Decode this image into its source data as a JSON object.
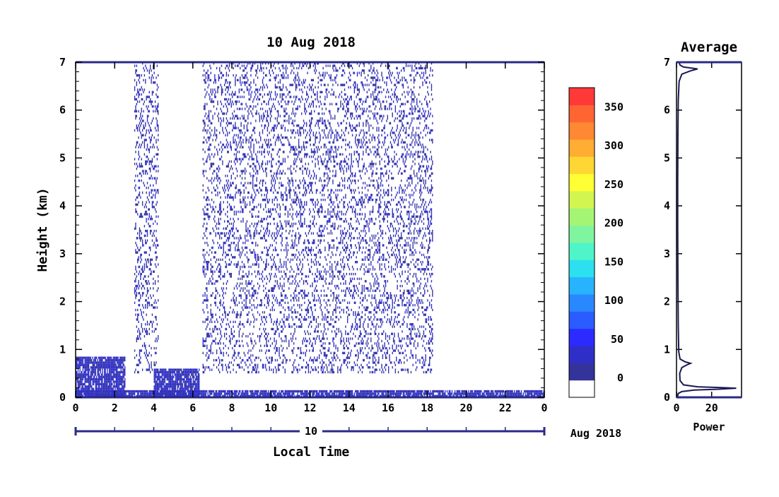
{
  "chart_data": [
    {
      "type": "heatmap",
      "title": "10 Aug 2018",
      "xlabel": "Local Time",
      "ylabel": "Height (km)",
      "x_ticks": [
        "0",
        "2",
        "4",
        "6",
        "8",
        "10",
        "12",
        "14",
        "16",
        "18",
        "20",
        "22",
        "0"
      ],
      "y_ticks": [
        "0",
        "1",
        "2",
        "3",
        "4",
        "5",
        "6",
        "7"
      ],
      "xlim": [
        0,
        24
      ],
      "ylim": [
        0,
        7
      ],
      "date_axis": {
        "day_label": "10",
        "month_year_label": "Aug 2018"
      },
      "colorbar": {
        "tick_labels": [
          "0",
          "50",
          "100",
          "150",
          "200",
          "250",
          "300",
          "350"
        ],
        "range": [
          -25,
          375
        ],
        "colors": [
          "#ffffff",
          "#33339b",
          "#2f2fc8",
          "#2b2bff",
          "#2a5cff",
          "#2a88ff",
          "#28b3ff",
          "#2ce0f0",
          "#4ff5c8",
          "#7ff5a0",
          "#a5f575",
          "#d2f550",
          "#ffff33",
          "#ffd633",
          "#ffad33",
          "#ff8833",
          "#ff6433",
          "#ff3838"
        ]
      },
      "regions": [
        {
          "description": "sparse noise echoes",
          "x_range": [
            6.5,
            18.3
          ],
          "y_range": [
            0.5,
            7.0
          ],
          "typical_value": 20
        },
        {
          "description": "sparse noise echoes",
          "x_range": [
            3.0,
            4.2
          ],
          "y_range": [
            0.5,
            7.0
          ],
          "typical_value": 20
        },
        {
          "description": "boundary layer echo",
          "x_range": [
            0,
            2.5
          ],
          "y_range": [
            0,
            0.85
          ],
          "typical_value": 25
        },
        {
          "description": "boundary layer echo",
          "x_range": [
            4.0,
            6.3
          ],
          "y_range": [
            0,
            0.6
          ],
          "typical_value": 25
        },
        {
          "description": "surface echo",
          "x_range": [
            0,
            24
          ],
          "y_range": [
            0,
            0.12
          ],
          "typical_value": 25
        }
      ]
    },
    {
      "type": "line",
      "title": "Average",
      "xlabel": "Power",
      "ylabel": "",
      "x_ticks": [
        "0",
        "20"
      ],
      "y_ticks": [
        "0",
        "1",
        "2",
        "3",
        "4",
        "5",
        "6",
        "7"
      ],
      "xlim": [
        0,
        37
      ],
      "ylim": [
        0,
        7
      ],
      "series": [
        {
          "height": [
            0,
            0.08,
            0.12,
            0.15,
            0.17,
            0.19,
            0.2,
            0.22,
            0.26,
            0.35,
            0.5,
            0.62,
            0.68,
            0.71,
            0.74,
            0.8,
            0.95,
            1.5,
            2.5,
            3.5,
            4.5,
            5.5,
            6.2,
            6.6,
            6.75,
            6.82,
            6.86,
            6.9,
            6.94,
            7.0
          ],
          "power": [
            0.5,
            1.0,
            3,
            10,
            24,
            34,
            28,
            12,
            4,
            2,
            1.8,
            3,
            6,
            8,
            5,
            2,
            1.3,
            1.0,
            0.8,
            0.7,
            0.7,
            0.8,
            1.0,
            1.5,
            3,
            8,
            12,
            4,
            2,
            1.5
          ]
        }
      ]
    }
  ]
}
